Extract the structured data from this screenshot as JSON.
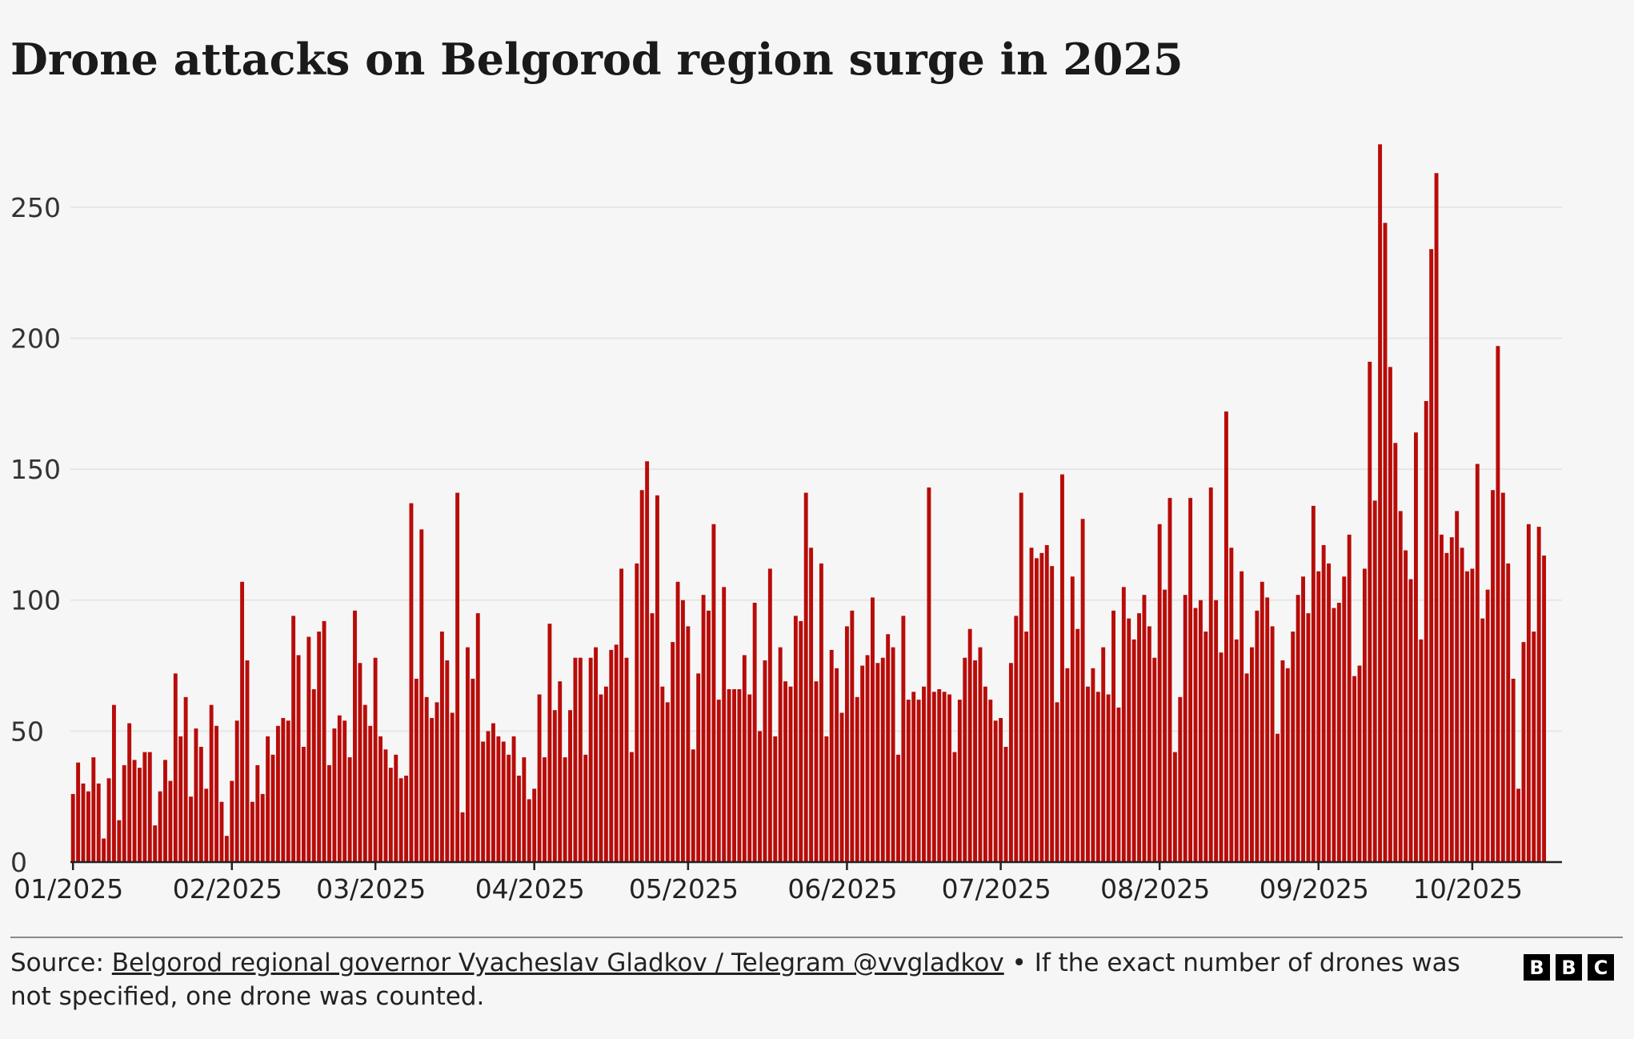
{
  "header": {
    "title": "Drone attacks on Belgorod region surge in 2025"
  },
  "footer": {
    "source_prefix": "Source: ",
    "source_link": "Belgorod regional governor Vyacheslav Gladkov / Telegram @vvgladkov",
    "note": " • If the exact number of drones was not specified, one drone was counted.",
    "logo": [
      "B",
      "B",
      "C"
    ]
  },
  "chart_data": {
    "type": "bar",
    "title": "Drone attacks on Belgorod region surge in 2025",
    "xlabel": "",
    "ylabel": "",
    "ylim": [
      0,
      275
    ],
    "yticks": [
      0,
      50,
      100,
      150,
      200,
      250
    ],
    "grid": true,
    "color": "#b80c09",
    "x_start": "2025-01-01",
    "x_end": "2025-10-18",
    "x_ticks": [
      {
        "label": "01/2025",
        "date": "2025-01-01"
      },
      {
        "label": "02/2025",
        "date": "2025-02-01"
      },
      {
        "label": "03/2025",
        "date": "2025-03-01"
      },
      {
        "label": "04/2025",
        "date": "2025-04-01"
      },
      {
        "label": "05/2025",
        "date": "2025-05-01"
      },
      {
        "label": "06/2025",
        "date": "2025-06-01"
      },
      {
        "label": "07/2025",
        "date": "2025-07-01"
      },
      {
        "label": "08/2025",
        "date": "2025-08-01"
      },
      {
        "label": "09/2025",
        "date": "2025-09-01"
      },
      {
        "label": "10/2025",
        "date": "2025-10-01"
      }
    ],
    "values": [
      26,
      38,
      30,
      27,
      40,
      30,
      9,
      32,
      60,
      16,
      37,
      53,
      39,
      36,
      42,
      42,
      14,
      27,
      39,
      31,
      72,
      48,
      63,
      25,
      51,
      44,
      28,
      60,
      52,
      23,
      10,
      31,
      54,
      107,
      77,
      23,
      37,
      26,
      48,
      41,
      52,
      55,
      54,
      94,
      79,
      44,
      86,
      66,
      88,
      92,
      37,
      51,
      56,
      54,
      40,
      96,
      76,
      60,
      52,
      78,
      48,
      43,
      36,
      41,
      32,
      33,
      137,
      70,
      127,
      63,
      55,
      61,
      88,
      77,
      57,
      141,
      19,
      82,
      70,
      95,
      46,
      50,
      53,
      48,
      46,
      41,
      48,
      33,
      40,
      24,
      28,
      64,
      40,
      91,
      58,
      69,
      40,
      58,
      78,
      78,
      41,
      78,
      82,
      64,
      67,
      81,
      83,
      112,
      78,
      42,
      114,
      142,
      153,
      95,
      140,
      67,
      61,
      84,
      107,
      100,
      90,
      43,
      72,
      102,
      96,
      129,
      62,
      105,
      66,
      66,
      66,
      79,
      64,
      99,
      50,
      77,
      112,
      48,
      82,
      69,
      67,
      94,
      92,
      141,
      120,
      69,
      114,
      48,
      81,
      74,
      57,
      90,
      96,
      63,
      75,
      79,
      101,
      76,
      78,
      87,
      82,
      41,
      94,
      62,
      65,
      62,
      67,
      143,
      65,
      66,
      65,
      64,
      42,
      62,
      78,
      89,
      77,
      82,
      67,
      62,
      54,
      55,
      44,
      76,
      94,
      141,
      88,
      120,
      116,
      118,
      121,
      113,
      61,
      148,
      74,
      109,
      89,
      131,
      67,
      74,
      65,
      82,
      64,
      96,
      59,
      105,
      93,
      85,
      95,
      102,
      90,
      78,
      129,
      104,
      139,
      42,
      63,
      102,
      139,
      97,
      100,
      88,
      143,
      100,
      80,
      172,
      120,
      85,
      111,
      72,
      82,
      96,
      107,
      101,
      90,
      49,
      77,
      74,
      88,
      102,
      109,
      95,
      136,
      111,
      121,
      114,
      97,
      99,
      109,
      125,
      71,
      75,
      112,
      191,
      138,
      274,
      244,
      189,
      160,
      134,
      119,
      108,
      164,
      85,
      176,
      234,
      263,
      125,
      118,
      124,
      134,
      120,
      111,
      112,
      152,
      93,
      104,
      142,
      197,
      141,
      114,
      70,
      28,
      84,
      129,
      88,
      128,
      117
    ]
  }
}
